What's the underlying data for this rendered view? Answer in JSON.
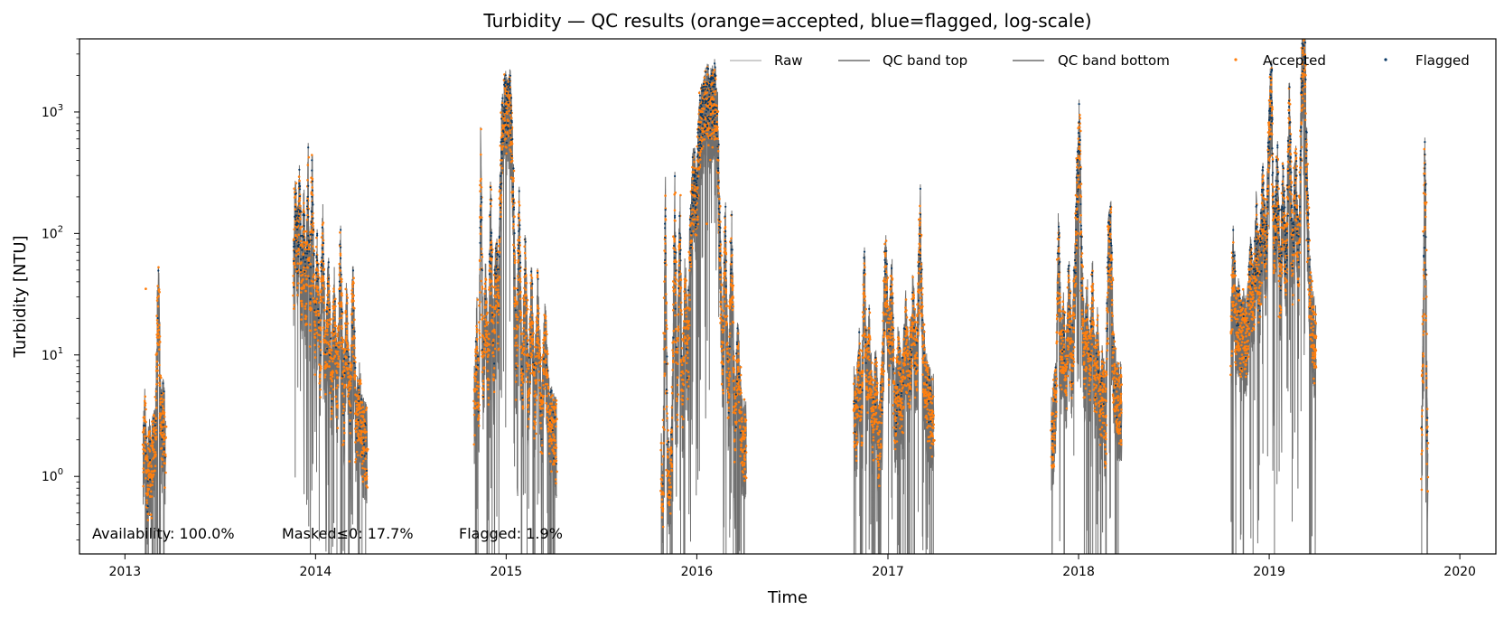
{
  "chart_data": {
    "type": "line",
    "title": "Turbidity — QC results (orange=accepted, blue=flagged, log-scale)",
    "xlabel": "Time",
    "ylabel": "Turbidity [NTU]",
    "yscale": "log",
    "ylim": [
      0.23,
      4000
    ],
    "xlim": [
      "2012-10-06",
      "2020-03-10"
    ],
    "x_ticks": [
      "2013",
      "2014",
      "2015",
      "2016",
      "2017",
      "2018",
      "2019",
      "2020"
    ],
    "y_ticks": [
      {
        "value": 1,
        "base": "10",
        "exp": "0"
      },
      {
        "value": 10,
        "base": "10",
        "exp": "1"
      },
      {
        "value": 100,
        "base": "10",
        "exp": "2"
      },
      {
        "value": 1000,
        "base": "10",
        "exp": "3"
      }
    ],
    "grid": false,
    "legend": {
      "placement": "top-right",
      "entries": [
        "Raw",
        "QC band top",
        "QC band bottom",
        "Accepted",
        "Flagged"
      ]
    },
    "colors": {
      "raw": "#9e9e9e",
      "band": "#6f6f6f",
      "accepted": "#ff7f0e",
      "flagged": "#0b3a66"
    },
    "annotation": {
      "availability": "Availability: 100.0%",
      "masked": "Masked≤0: 17.7%",
      "flagged": "Flagged: 1.9%"
    },
    "segments": [
      {
        "start": "2013-02-05",
        "end": "2013-03-20",
        "points": [
          [
            "2013-02-05",
            1.3
          ],
          [
            "2013-02-09",
            2.8
          ],
          [
            "2013-02-13",
            0.7
          ],
          [
            "2013-02-17",
            1.6
          ],
          [
            "2013-02-21",
            0.9
          ],
          [
            "2013-02-25",
            1.8
          ],
          [
            "2013-03-01",
            2.0
          ],
          [
            "2013-03-04",
            9.0
          ],
          [
            "2013-03-06",
            30.0
          ],
          [
            "2013-03-08",
            25.0
          ],
          [
            "2013-03-10",
            4.0
          ],
          [
            "2013-03-13",
            2.0
          ],
          [
            "2013-03-16",
            3.5
          ],
          [
            "2013-03-20",
            1.5
          ]
        ]
      },
      {
        "start": "2013-11-20",
        "end": "2014-04-10",
        "points": [
          [
            "2013-11-20",
            40
          ],
          [
            "2013-11-24",
            180
          ],
          [
            "2013-11-28",
            60
          ],
          [
            "2013-12-02",
            200
          ],
          [
            "2013-12-06",
            30
          ],
          [
            "2013-12-10",
            120
          ],
          [
            "2013-12-14",
            20
          ],
          [
            "2013-12-18",
            250
          ],
          [
            "2013-12-22",
            15
          ],
          [
            "2013-12-26",
            300
          ],
          [
            "2013-12-31",
            12
          ],
          [
            "2014-01-05",
            60
          ],
          [
            "2014-01-10",
            8
          ],
          [
            "2014-01-15",
            100
          ],
          [
            "2014-01-20",
            7
          ],
          [
            "2014-01-26",
            30
          ],
          [
            "2014-02-01",
            5
          ],
          [
            "2014-02-06",
            25
          ],
          [
            "2014-02-12",
            4.5
          ],
          [
            "2014-02-18",
            60
          ],
          [
            "2014-02-24",
            3
          ],
          [
            "2014-03-02",
            20
          ],
          [
            "2014-03-08",
            2.5
          ],
          [
            "2014-03-14",
            30
          ],
          [
            "2014-03-20",
            2.2
          ],
          [
            "2014-03-26",
            4
          ],
          [
            "2014-04-02",
            2.0
          ],
          [
            "2014-04-10",
            1.8
          ]
        ]
      },
      {
        "start": "2014-11-01",
        "end": "2015-04-08",
        "points": [
          [
            "2014-11-01",
            3
          ],
          [
            "2014-11-06",
            15
          ],
          [
            "2014-11-10",
            2.5
          ],
          [
            "2014-11-14",
            400
          ],
          [
            "2014-11-18",
            5
          ],
          [
            "2014-11-23",
            30
          ],
          [
            "2014-11-28",
            6
          ],
          [
            "2014-12-03",
            150
          ],
          [
            "2014-12-08",
            8
          ],
          [
            "2014-12-13",
            60
          ],
          [
            "2014-12-18",
            20
          ],
          [
            "2014-12-22",
            300
          ],
          [
            "2014-12-26",
            900
          ],
          [
            "2014-12-30",
            1000
          ],
          [
            "2015-01-04",
            800
          ],
          [
            "2015-01-08",
            1100
          ],
          [
            "2015-01-12",
            600
          ],
          [
            "2015-01-16",
            150
          ],
          [
            "2015-01-21",
            8
          ],
          [
            "2015-01-26",
            120
          ],
          [
            "2015-02-01",
            5
          ],
          [
            "2015-02-07",
            60
          ],
          [
            "2015-02-13",
            4
          ],
          [
            "2015-02-19",
            30
          ],
          [
            "2015-02-25",
            3.5
          ],
          [
            "2015-03-03",
            25
          ],
          [
            "2015-03-10",
            3
          ],
          [
            "2015-03-17",
            15
          ],
          [
            "2015-03-25",
            2.5
          ],
          [
            "2015-04-08",
            2.0
          ]
        ]
      },
      {
        "start": "2015-10-25",
        "end": "2016-04-05",
        "points": [
          [
            "2015-10-25",
            1.2
          ],
          [
            "2015-10-29",
            0.6
          ],
          [
            "2015-11-02",
            150
          ],
          [
            "2015-11-06",
            1.5
          ],
          [
            "2015-11-10",
            0.8
          ],
          [
            "2015-11-15",
            2.0
          ],
          [
            "2015-11-20",
            140
          ],
          [
            "2015-11-25",
            4
          ],
          [
            "2015-11-30",
            120
          ],
          [
            "2015-12-05",
            3
          ],
          [
            "2015-12-10",
            40
          ],
          [
            "2015-12-15",
            8
          ],
          [
            "2015-12-20",
            80
          ],
          [
            "2015-12-26",
            300
          ],
          [
            "2016-01-01",
            150
          ],
          [
            "2016-01-06",
            600
          ],
          [
            "2016-01-11",
            800
          ],
          [
            "2016-01-16",
            1000
          ],
          [
            "2016-01-21",
            1200
          ],
          [
            "2016-01-26",
            900
          ],
          [
            "2016-01-31",
            1100
          ],
          [
            "2016-02-05",
            1300
          ],
          [
            "2016-02-10",
            700
          ],
          [
            "2016-02-15",
            60
          ],
          [
            "2016-02-20",
            8
          ],
          [
            "2016-02-25",
            100
          ],
          [
            "2016-03-02",
            3
          ],
          [
            "2016-03-08",
            90
          ],
          [
            "2016-03-14",
            2.5
          ],
          [
            "2016-03-20",
            10
          ],
          [
            "2016-03-27",
            2
          ],
          [
            "2016-04-05",
            1.8
          ]
        ]
      },
      {
        "start": "2016-10-28",
        "end": "2017-03-30",
        "points": [
          [
            "2016-10-28",
            4
          ],
          [
            "2016-11-02",
            2.5
          ],
          [
            "2016-11-07",
            8
          ],
          [
            "2016-11-12",
            3
          ],
          [
            "2016-11-17",
            45
          ],
          [
            "2016-11-22",
            5
          ],
          [
            "2016-11-27",
            12
          ],
          [
            "2016-12-03",
            2.5
          ],
          [
            "2016-12-09",
            6
          ],
          [
            "2016-12-15",
            1.5
          ],
          [
            "2016-12-21",
            5
          ],
          [
            "2016-12-28",
            60
          ],
          [
            "2017-01-03",
            10
          ],
          [
            "2017-01-09",
            30
          ],
          [
            "2017-01-15",
            2.5
          ],
          [
            "2017-01-21",
            8
          ],
          [
            "2017-01-28",
            4
          ],
          [
            "2017-02-04",
            15
          ],
          [
            "2017-02-11",
            5
          ],
          [
            "2017-02-18",
            25
          ],
          [
            "2017-02-25",
            6
          ],
          [
            "2017-03-04",
            110
          ],
          [
            "2017-03-11",
            8
          ],
          [
            "2017-03-18",
            4
          ],
          [
            "2017-03-30",
            3
          ]
        ]
      },
      {
        "start": "2017-11-10",
        "end": "2018-03-25",
        "points": [
          [
            "2017-11-10",
            2.2
          ],
          [
            "2017-11-14",
            2.5
          ],
          [
            "2017-11-19",
            5
          ],
          [
            "2017-11-24",
            80
          ],
          [
            "2017-11-29",
            8
          ],
          [
            "2017-12-04",
            15
          ],
          [
            "2017-12-09",
            6
          ],
          [
            "2017-12-14",
            40
          ],
          [
            "2017-12-19",
            8
          ],
          [
            "2017-12-24",
            25
          ],
          [
            "2017-12-29",
            150
          ],
          [
            "2018-01-03",
            800
          ],
          [
            "2018-01-08",
            30
          ],
          [
            "2018-01-13",
            8
          ],
          [
            "2018-01-18",
            20
          ],
          [
            "2018-01-23",
            6
          ],
          [
            "2018-01-28",
            30
          ],
          [
            "2018-02-02",
            5
          ],
          [
            "2018-02-07",
            12
          ],
          [
            "2018-02-12",
            3
          ],
          [
            "2018-02-17",
            6
          ],
          [
            "2018-02-22",
            2
          ],
          [
            "2018-02-27",
            60
          ],
          [
            "2018-03-04",
            100
          ],
          [
            "2018-03-09",
            8
          ],
          [
            "2018-03-15",
            4
          ],
          [
            "2018-03-25",
            4
          ]
        ]
      },
      {
        "start": "2018-10-20",
        "end": "2019-04-01",
        "points": [
          [
            "2018-10-20",
            12
          ],
          [
            "2018-10-25",
            60
          ],
          [
            "2018-10-30",
            15
          ],
          [
            "2018-11-04",
            20
          ],
          [
            "2018-11-09",
            12
          ],
          [
            "2018-11-14",
            15
          ],
          [
            "2018-11-20",
            13
          ],
          [
            "2018-11-26",
            50
          ],
          [
            "2018-12-02",
            25
          ],
          [
            "2018-12-08",
            100
          ],
          [
            "2018-12-14",
            30
          ],
          [
            "2018-12-20",
            200
          ],
          [
            "2018-12-26",
            50
          ],
          [
            "2019-01-01",
            700
          ],
          [
            "2019-01-06",
            1500
          ],
          [
            "2019-01-11",
            60
          ],
          [
            "2019-01-17",
            300
          ],
          [
            "2019-01-22",
            30
          ],
          [
            "2019-01-28",
            200
          ],
          [
            "2019-02-03",
            40
          ],
          [
            "2019-02-09",
            1000
          ],
          [
            "2019-02-15",
            50
          ],
          [
            "2019-02-21",
            300
          ],
          [
            "2019-02-27",
            40
          ],
          [
            "2019-03-05",
            2000
          ],
          [
            "2019-03-10",
            3500
          ],
          [
            "2019-03-15",
            200
          ],
          [
            "2019-03-20",
            30
          ],
          [
            "2019-03-25",
            15
          ],
          [
            "2019-04-01",
            12
          ]
        ]
      },
      {
        "start": "2019-10-20",
        "end": "2019-11-01",
        "points": [
          [
            "2019-10-20",
            1.0
          ],
          [
            "2019-10-22",
            8
          ],
          [
            "2019-10-24",
            20
          ],
          [
            "2019-10-26",
            350
          ],
          [
            "2019-10-28",
            120
          ],
          [
            "2019-10-30",
            5
          ],
          [
            "2019-11-01",
            0.8
          ]
        ]
      }
    ],
    "isolated_points": [
      {
        "x": "2013-02-10",
        "y": 35,
        "series": "Accepted"
      },
      {
        "x": "2016-01-20",
        "y": 120,
        "series": "Accepted"
      },
      {
        "x": "2017-11-16",
        "y": 2.5,
        "series": "Accepted"
      },
      {
        "x": "2017-11-16",
        "y": 3.0,
        "series": "Raw"
      }
    ]
  }
}
